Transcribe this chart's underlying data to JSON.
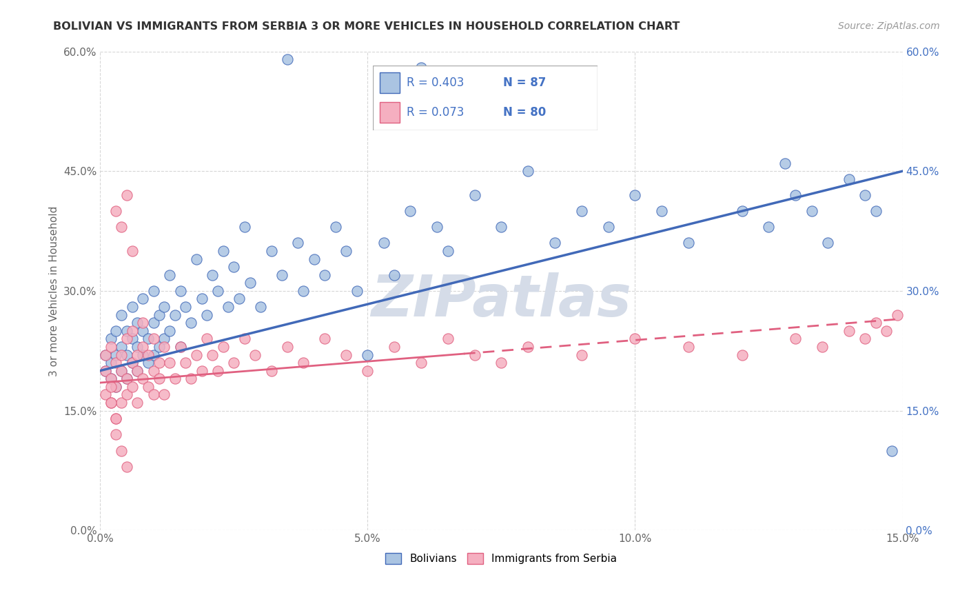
{
  "title": "BOLIVIAN VS IMMIGRANTS FROM SERBIA 3 OR MORE VEHICLES IN HOUSEHOLD CORRELATION CHART",
  "source": "Source: ZipAtlas.com",
  "ylabel": "3 or more Vehicles in Household",
  "legend_label1": "Bolivians",
  "legend_label2": "Immigrants from Serbia",
  "r1": 0.403,
  "n1": 87,
  "r2": 0.073,
  "n2": 80,
  "xlim": [
    0.0,
    0.15
  ],
  "ylim": [
    0.0,
    0.6
  ],
  "xticks": [
    0.0,
    0.05,
    0.1,
    0.15
  ],
  "yticks": [
    0.0,
    0.15,
    0.3,
    0.45,
    0.6
  ],
  "xticklabels": [
    "0.0%",
    "5.0%",
    "10.0%",
    "15.0%"
  ],
  "yticklabels": [
    "0.0%",
    "15.0%",
    "30.0%",
    "45.0%",
    "60.0%"
  ],
  "color_blue": "#aac4e2",
  "color_pink": "#f5afc0",
  "line_color_blue": "#4169b8",
  "line_color_pink": "#e06080",
  "grid_color": "#cccccc",
  "watermark_color": "#d5dce8",
  "watermark_text": "ZIPatlas",
  "title_color": "#333333",
  "axis_label_color": "#666666",
  "tick_color": "#666666",
  "right_tick_color": "#4472c4",
  "legend_r_color": "#4472c4",
  "blue_line_y0": 0.2,
  "blue_line_y1": 0.45,
  "pink_line_y0": 0.185,
  "pink_line_y1": 0.265,
  "blue_scatter_x": [
    0.001,
    0.001,
    0.002,
    0.002,
    0.002,
    0.003,
    0.003,
    0.003,
    0.004,
    0.004,
    0.004,
    0.005,
    0.005,
    0.005,
    0.006,
    0.006,
    0.006,
    0.007,
    0.007,
    0.007,
    0.008,
    0.008,
    0.008,
    0.009,
    0.009,
    0.01,
    0.01,
    0.01,
    0.011,
    0.011,
    0.012,
    0.012,
    0.013,
    0.013,
    0.014,
    0.015,
    0.015,
    0.016,
    0.017,
    0.018,
    0.019,
    0.02,
    0.021,
    0.022,
    0.023,
    0.024,
    0.025,
    0.026,
    0.027,
    0.028,
    0.03,
    0.032,
    0.034,
    0.035,
    0.037,
    0.038,
    0.04,
    0.042,
    0.044,
    0.046,
    0.048,
    0.05,
    0.053,
    0.055,
    0.058,
    0.06,
    0.063,
    0.065,
    0.07,
    0.075,
    0.08,
    0.085,
    0.09,
    0.095,
    0.1,
    0.105,
    0.11,
    0.12,
    0.125,
    0.128,
    0.13,
    0.133,
    0.136,
    0.14,
    0.143,
    0.145,
    0.148
  ],
  "blue_scatter_y": [
    0.2,
    0.22,
    0.19,
    0.21,
    0.24,
    0.18,
    0.22,
    0.25,
    0.2,
    0.23,
    0.27,
    0.19,
    0.22,
    0.25,
    0.21,
    0.24,
    0.28,
    0.2,
    0.23,
    0.26,
    0.22,
    0.25,
    0.29,
    0.21,
    0.24,
    0.22,
    0.26,
    0.3,
    0.23,
    0.27,
    0.24,
    0.28,
    0.25,
    0.32,
    0.27,
    0.23,
    0.3,
    0.28,
    0.26,
    0.34,
    0.29,
    0.27,
    0.32,
    0.3,
    0.35,
    0.28,
    0.33,
    0.29,
    0.38,
    0.31,
    0.28,
    0.35,
    0.32,
    0.59,
    0.36,
    0.3,
    0.34,
    0.32,
    0.38,
    0.35,
    0.3,
    0.22,
    0.36,
    0.32,
    0.4,
    0.58,
    0.38,
    0.35,
    0.42,
    0.38,
    0.45,
    0.36,
    0.4,
    0.38,
    0.42,
    0.4,
    0.36,
    0.4,
    0.38,
    0.46,
    0.42,
    0.4,
    0.36,
    0.44,
    0.42,
    0.4,
    0.1
  ],
  "pink_scatter_x": [
    0.001,
    0.001,
    0.001,
    0.002,
    0.002,
    0.002,
    0.003,
    0.003,
    0.003,
    0.004,
    0.004,
    0.004,
    0.005,
    0.005,
    0.005,
    0.006,
    0.006,
    0.006,
    0.007,
    0.007,
    0.007,
    0.008,
    0.008,
    0.008,
    0.009,
    0.009,
    0.01,
    0.01,
    0.01,
    0.011,
    0.011,
    0.012,
    0.012,
    0.013,
    0.014,
    0.015,
    0.016,
    0.017,
    0.018,
    0.019,
    0.02,
    0.021,
    0.022,
    0.023,
    0.025,
    0.027,
    0.029,
    0.032,
    0.035,
    0.038,
    0.042,
    0.046,
    0.05,
    0.055,
    0.06,
    0.065,
    0.07,
    0.075,
    0.08,
    0.09,
    0.1,
    0.11,
    0.12,
    0.13,
    0.135,
    0.14,
    0.143,
    0.145,
    0.147,
    0.149,
    0.003,
    0.004,
    0.005,
    0.006,
    0.003,
    0.004,
    0.005,
    0.002,
    0.003,
    0.002
  ],
  "pink_scatter_y": [
    0.2,
    0.22,
    0.17,
    0.19,
    0.23,
    0.16,
    0.21,
    0.18,
    0.14,
    0.2,
    0.16,
    0.22,
    0.19,
    0.24,
    0.17,
    0.21,
    0.25,
    0.18,
    0.22,
    0.2,
    0.16,
    0.23,
    0.19,
    0.26,
    0.18,
    0.22,
    0.2,
    0.24,
    0.17,
    0.21,
    0.19,
    0.23,
    0.17,
    0.21,
    0.19,
    0.23,
    0.21,
    0.19,
    0.22,
    0.2,
    0.24,
    0.22,
    0.2,
    0.23,
    0.21,
    0.24,
    0.22,
    0.2,
    0.23,
    0.21,
    0.24,
    0.22,
    0.2,
    0.23,
    0.21,
    0.24,
    0.22,
    0.21,
    0.23,
    0.22,
    0.24,
    0.23,
    0.22,
    0.24,
    0.23,
    0.25,
    0.24,
    0.26,
    0.25,
    0.27,
    0.4,
    0.38,
    0.42,
    0.35,
    0.12,
    0.1,
    0.08,
    0.16,
    0.14,
    0.18
  ]
}
